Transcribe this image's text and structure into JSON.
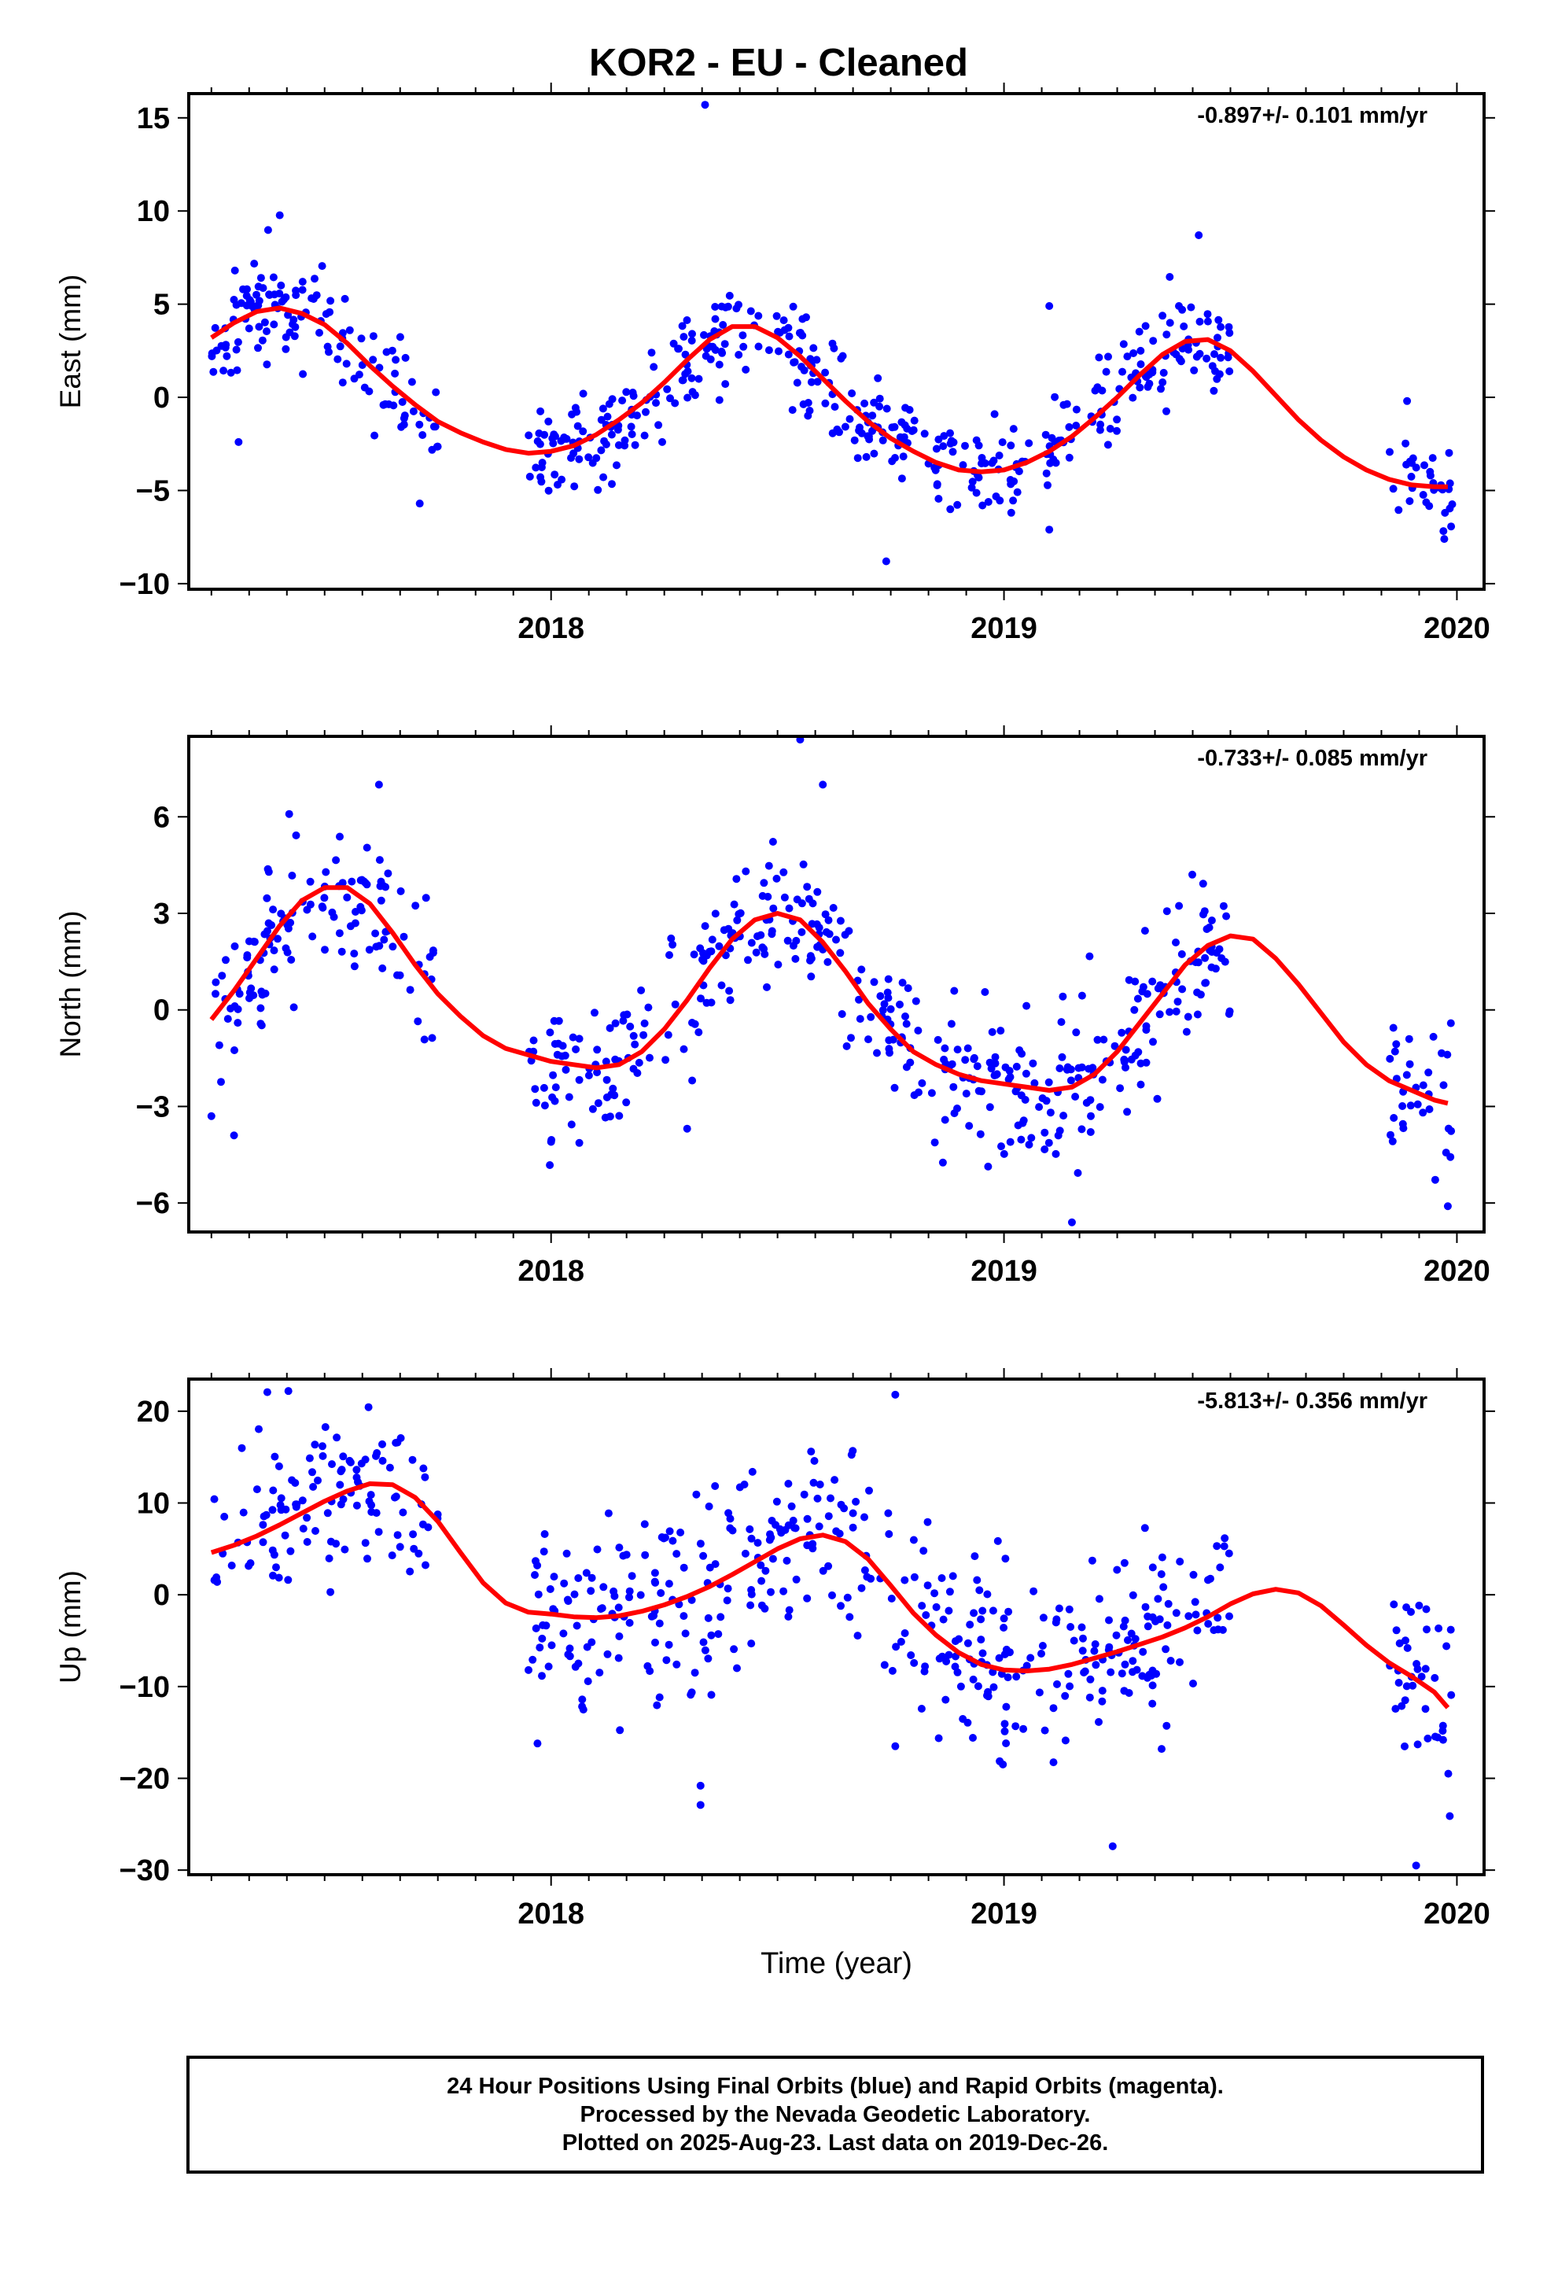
{
  "title": "KOR2  - EU - Cleaned",
  "footer": {
    "line1": "24 Hour Positions Using Final Orbits (blue) and Rapid Orbits (magenta).",
    "line2": "Processed by the Nevada Geodetic Laboratory.",
    "line3": "Plotted on 2025-Aug-23. Last data on 2019-Dec-26."
  },
  "colors": {
    "points": "#0000ff",
    "model": "#ff0000",
    "axes": "#000000"
  },
  "chart_data": [
    {
      "type": "scatter",
      "ylabel": "East (mm)",
      "xlabel": "",
      "xlim": [
        2017.2,
        2020.06
      ],
      "ylim": [
        -10.3,
        16.3
      ],
      "xticks": [
        2018,
        2019,
        2020
      ],
      "yticks": [
        -10,
        -5,
        0,
        5,
        10,
        15
      ],
      "annotation": "-0.897+/- 0.101 mm/yr",
      "grid": false,
      "model_curve": [
        [
          2017.25,
          3.2
        ],
        [
          2017.3,
          4.0
        ],
        [
          2017.35,
          4.6
        ],
        [
          2017.4,
          4.8
        ],
        [
          2017.45,
          4.5
        ],
        [
          2017.5,
          3.9
        ],
        [
          2017.55,
          2.9
        ],
        [
          2017.6,
          1.7
        ],
        [
          2017.65,
          0.6
        ],
        [
          2017.7,
          -0.4
        ],
        [
          2017.75,
          -1.3
        ],
        [
          2017.8,
          -1.9
        ],
        [
          2017.85,
          -2.4
        ],
        [
          2017.9,
          -2.8
        ],
        [
          2017.95,
          -3.0
        ],
        [
          2018.0,
          -2.9
        ],
        [
          2018.05,
          -2.6
        ],
        [
          2018.1,
          -2.0
        ],
        [
          2018.15,
          -1.2
        ],
        [
          2018.2,
          -0.3
        ],
        [
          2018.25,
          0.8
        ],
        [
          2018.3,
          2.0
        ],
        [
          2018.35,
          3.1
        ],
        [
          2018.4,
          3.8
        ],
        [
          2018.45,
          3.8
        ],
        [
          2018.5,
          3.2
        ],
        [
          2018.55,
          2.2
        ],
        [
          2018.6,
          1.0
        ],
        [
          2018.65,
          -0.2
        ],
        [
          2018.7,
          -1.3
        ],
        [
          2018.75,
          -2.2
        ],
        [
          2018.8,
          -2.9
        ],
        [
          2018.85,
          -3.5
        ],
        [
          2018.9,
          -3.9
        ],
        [
          2018.95,
          -4.0
        ],
        [
          2019.0,
          -3.9
        ],
        [
          2019.05,
          -3.5
        ],
        [
          2019.1,
          -2.9
        ],
        [
          2019.15,
          -2.1
        ],
        [
          2019.2,
          -1.1
        ],
        [
          2019.25,
          0.0
        ],
        [
          2019.3,
          1.2
        ],
        [
          2019.35,
          2.3
        ],
        [
          2019.4,
          3.0
        ],
        [
          2019.45,
          3.1
        ],
        [
          2019.5,
          2.5
        ],
        [
          2019.55,
          1.4
        ],
        [
          2019.6,
          0.1
        ],
        [
          2019.65,
          -1.2
        ],
        [
          2019.7,
          -2.3
        ],
        [
          2019.75,
          -3.2
        ],
        [
          2019.8,
          -3.9
        ],
        [
          2019.85,
          -4.4
        ],
        [
          2019.9,
          -4.7
        ],
        [
          2019.95,
          -4.8
        ],
        [
          2019.98,
          -4.8
        ]
      ],
      "segments": [
        [
          2017.25,
          2017.75
        ],
        [
          2017.95,
          2019.5
        ],
        [
          2019.85,
          2019.99
        ]
      ],
      "outliers": [
        [
          2018.34,
          15.7
        ],
        [
          2017.31,
          -2.4
        ],
        [
          2017.71,
          -5.7
        ],
        [
          2018.74,
          -8.8
        ],
        [
          2019.1,
          -7.1
        ],
        [
          2019.1,
          4.9
        ],
        [
          2019.89,
          -0.2
        ],
        [
          2019.43,
          8.7
        ]
      ],
      "scatter_seed": 11,
      "scatter_n": 560,
      "scatter_sd": 1.4
    },
    {
      "type": "scatter",
      "ylabel": "North (mm)",
      "xlabel": "",
      "xlim": [
        2017.2,
        2020.06
      ],
      "ylim": [
        -6.9,
        8.5
      ],
      "xticks": [
        2018,
        2019,
        2020
      ],
      "yticks": [
        -6,
        -3,
        0,
        3,
        6
      ],
      "annotation": "-0.733+/- 0.085 mm/yr",
      "grid": false,
      "model_curve": [
        [
          2017.25,
          -0.3
        ],
        [
          2017.3,
          0.6
        ],
        [
          2017.35,
          1.6
        ],
        [
          2017.4,
          2.6
        ],
        [
          2017.45,
          3.4
        ],
        [
          2017.5,
          3.8
        ],
        [
          2017.55,
          3.8
        ],
        [
          2017.6,
          3.3
        ],
        [
          2017.65,
          2.4
        ],
        [
          2017.7,
          1.4
        ],
        [
          2017.75,
          0.5
        ],
        [
          2017.8,
          -0.2
        ],
        [
          2017.85,
          -0.8
        ],
        [
          2017.9,
          -1.2
        ],
        [
          2017.95,
          -1.4
        ],
        [
          2018.0,
          -1.6
        ],
        [
          2018.05,
          -1.7
        ],
        [
          2018.1,
          -1.8
        ],
        [
          2018.15,
          -1.7
        ],
        [
          2018.2,
          -1.3
        ],
        [
          2018.25,
          -0.6
        ],
        [
          2018.3,
          0.3
        ],
        [
          2018.35,
          1.3
        ],
        [
          2018.4,
          2.2
        ],
        [
          2018.45,
          2.8
        ],
        [
          2018.5,
          3.0
        ],
        [
          2018.55,
          2.8
        ],
        [
          2018.6,
          2.1
        ],
        [
          2018.65,
          1.2
        ],
        [
          2018.7,
          0.2
        ],
        [
          2018.75,
          -0.6
        ],
        [
          2018.8,
          -1.3
        ],
        [
          2018.85,
          -1.7
        ],
        [
          2018.9,
          -2.0
        ],
        [
          2018.95,
          -2.2
        ],
        [
          2019.0,
          -2.3
        ],
        [
          2019.05,
          -2.4
        ],
        [
          2019.1,
          -2.5
        ],
        [
          2019.15,
          -2.4
        ],
        [
          2019.2,
          -2.0
        ],
        [
          2019.25,
          -1.3
        ],
        [
          2019.3,
          -0.4
        ],
        [
          2019.35,
          0.5
        ],
        [
          2019.4,
          1.4
        ],
        [
          2019.45,
          2.0
        ],
        [
          2019.5,
          2.3
        ],
        [
          2019.55,
          2.2
        ],
        [
          2019.6,
          1.6
        ],
        [
          2019.65,
          0.8
        ],
        [
          2019.7,
          -0.1
        ],
        [
          2019.75,
          -1.0
        ],
        [
          2019.8,
          -1.7
        ],
        [
          2019.85,
          -2.2
        ],
        [
          2019.9,
          -2.5
        ],
        [
          2019.95,
          -2.8
        ],
        [
          2019.98,
          -2.9
        ]
      ],
      "segments": [
        [
          2017.25,
          2017.75
        ],
        [
          2017.95,
          2019.5
        ],
        [
          2019.85,
          2019.99
        ]
      ],
      "outliers": [
        [
          2018.55,
          8.4
        ],
        [
          2018.6,
          7.0
        ],
        [
          2017.62,
          7.0
        ],
        [
          2017.25,
          -3.3
        ],
        [
          2017.3,
          -3.9
        ],
        [
          2019.15,
          -6.6
        ],
        [
          2019.98,
          -6.1
        ],
        [
          2018.0,
          -4.1
        ]
      ],
      "scatter_seed": 23,
      "scatter_n": 560,
      "scatter_sd": 1.1
    },
    {
      "type": "scatter",
      "ylabel": "Up (mm)",
      "xlabel": "Time (year)",
      "xlim": [
        2017.2,
        2020.06
      ],
      "ylim": [
        -30.5,
        23.5
      ],
      "xticks": [
        2018,
        2019,
        2020
      ],
      "yticks": [
        -30,
        -20,
        -10,
        0,
        10,
        20
      ],
      "annotation": "-5.813+/- 0.356 mm/yr",
      "grid": false,
      "model_curve": [
        [
          2017.25,
          4.6
        ],
        [
          2017.3,
          5.4
        ],
        [
          2017.35,
          6.4
        ],
        [
          2017.4,
          7.6
        ],
        [
          2017.45,
          8.9
        ],
        [
          2017.5,
          10.2
        ],
        [
          2017.55,
          11.3
        ],
        [
          2017.6,
          12.1
        ],
        [
          2017.65,
          12.0
        ],
        [
          2017.7,
          10.6
        ],
        [
          2017.75,
          8.0
        ],
        [
          2017.8,
          4.6
        ],
        [
          2017.85,
          1.3
        ],
        [
          2017.9,
          -0.9
        ],
        [
          2017.95,
          -1.9
        ],
        [
          2018.0,
          -2.1
        ],
        [
          2018.05,
          -2.4
        ],
        [
          2018.1,
          -2.5
        ],
        [
          2018.15,
          -2.3
        ],
        [
          2018.2,
          -1.8
        ],
        [
          2018.25,
          -1.1
        ],
        [
          2018.3,
          -0.2
        ],
        [
          2018.35,
          0.9
        ],
        [
          2018.4,
          2.2
        ],
        [
          2018.45,
          3.6
        ],
        [
          2018.5,
          5.0
        ],
        [
          2018.55,
          6.1
        ],
        [
          2018.6,
          6.5
        ],
        [
          2018.65,
          5.8
        ],
        [
          2018.7,
          3.9
        ],
        [
          2018.75,
          1.0
        ],
        [
          2018.8,
          -2.0
        ],
        [
          2018.85,
          -4.4
        ],
        [
          2018.9,
          -6.3
        ],
        [
          2018.95,
          -7.6
        ],
        [
          2019.0,
          -8.2
        ],
        [
          2019.05,
          -8.3
        ],
        [
          2019.1,
          -8.1
        ],
        [
          2019.15,
          -7.6
        ],
        [
          2019.2,
          -6.9
        ],
        [
          2019.25,
          -6.2
        ],
        [
          2019.3,
          -5.4
        ],
        [
          2019.35,
          -4.6
        ],
        [
          2019.4,
          -3.6
        ],
        [
          2019.45,
          -2.4
        ],
        [
          2019.5,
          -1.0
        ],
        [
          2019.55,
          0.1
        ],
        [
          2019.6,
          0.6
        ],
        [
          2019.65,
          0.2
        ],
        [
          2019.7,
          -1.2
        ],
        [
          2019.75,
          -3.3
        ],
        [
          2019.8,
          -5.5
        ],
        [
          2019.85,
          -7.4
        ],
        [
          2019.9,
          -8.9
        ],
        [
          2019.95,
          -10.6
        ],
        [
          2019.98,
          -12.3
        ]
      ],
      "segments": [
        [
          2017.25,
          2017.75
        ],
        [
          2017.95,
          2019.5
        ],
        [
          2019.85,
          2019.99
        ]
      ],
      "outliers": [
        [
          2017.42,
          22.2
        ],
        [
          2018.76,
          21.8
        ],
        [
          2018.33,
          -20.8
        ],
        [
          2018.33,
          -22.9
        ],
        [
          2019.24,
          -27.4
        ],
        [
          2019.91,
          -29.5
        ],
        [
          2018.76,
          -16.5
        ],
        [
          2017.97,
          -16.2
        ]
      ],
      "scatter_seed": 37,
      "scatter_n": 560,
      "scatter_sd": 5.0
    }
  ]
}
